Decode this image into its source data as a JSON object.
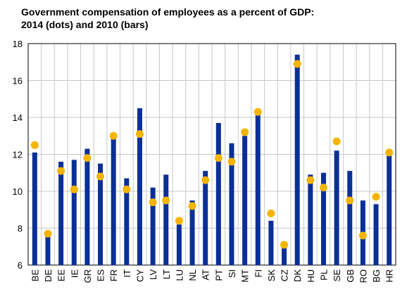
{
  "chart_data": {
    "type": "bar",
    "title_line1": "Government compensation of employees as a percent of GDP:",
    "title_line2": "2014 (dots) and 2010 (bars)",
    "xlabel": "",
    "ylabel": "",
    "ylim": [
      6,
      18
    ],
    "yticks": [
      "6",
      "8",
      "10",
      "12",
      "14",
      "16",
      "18"
    ],
    "grid": true,
    "categories": [
      "BE",
      "DE",
      "EE",
      "IE",
      "GR",
      "ES",
      "FR",
      "IT",
      "CY",
      "LV",
      "LT",
      "LU",
      "NL",
      "AT",
      "PT",
      "SI",
      "MT",
      "FI",
      "SK",
      "CZ",
      "DK",
      "HU",
      "PL",
      "SE",
      "GB",
      "RO",
      "BG",
      "HR"
    ],
    "series": [
      {
        "kind": "bars",
        "color": "#0a2f96",
        "values": [
          12.1,
          7.8,
          11.6,
          11.7,
          12.3,
          11.5,
          12.9,
          10.7,
          14.5,
          10.2,
          10.9,
          8.2,
          9.5,
          11.1,
          13.7,
          12.6,
          13.0,
          14.3,
          8.4,
          7.0,
          17.4,
          10.9,
          11.0,
          12.2,
          11.1,
          9.5,
          9.3,
          12.2
        ]
      },
      {
        "kind": "dots",
        "color": "#f5b400",
        "values": [
          12.5,
          7.7,
          11.1,
          10.1,
          11.8,
          10.8,
          13.0,
          10.1,
          13.1,
          9.4,
          9.5,
          8.4,
          9.2,
          10.6,
          11.8,
          11.6,
          13.2,
          14.3,
          8.8,
          7.1,
          16.9,
          10.6,
          10.2,
          12.7,
          9.5,
          7.6,
          9.7,
          12.1
        ]
      }
    ]
  }
}
